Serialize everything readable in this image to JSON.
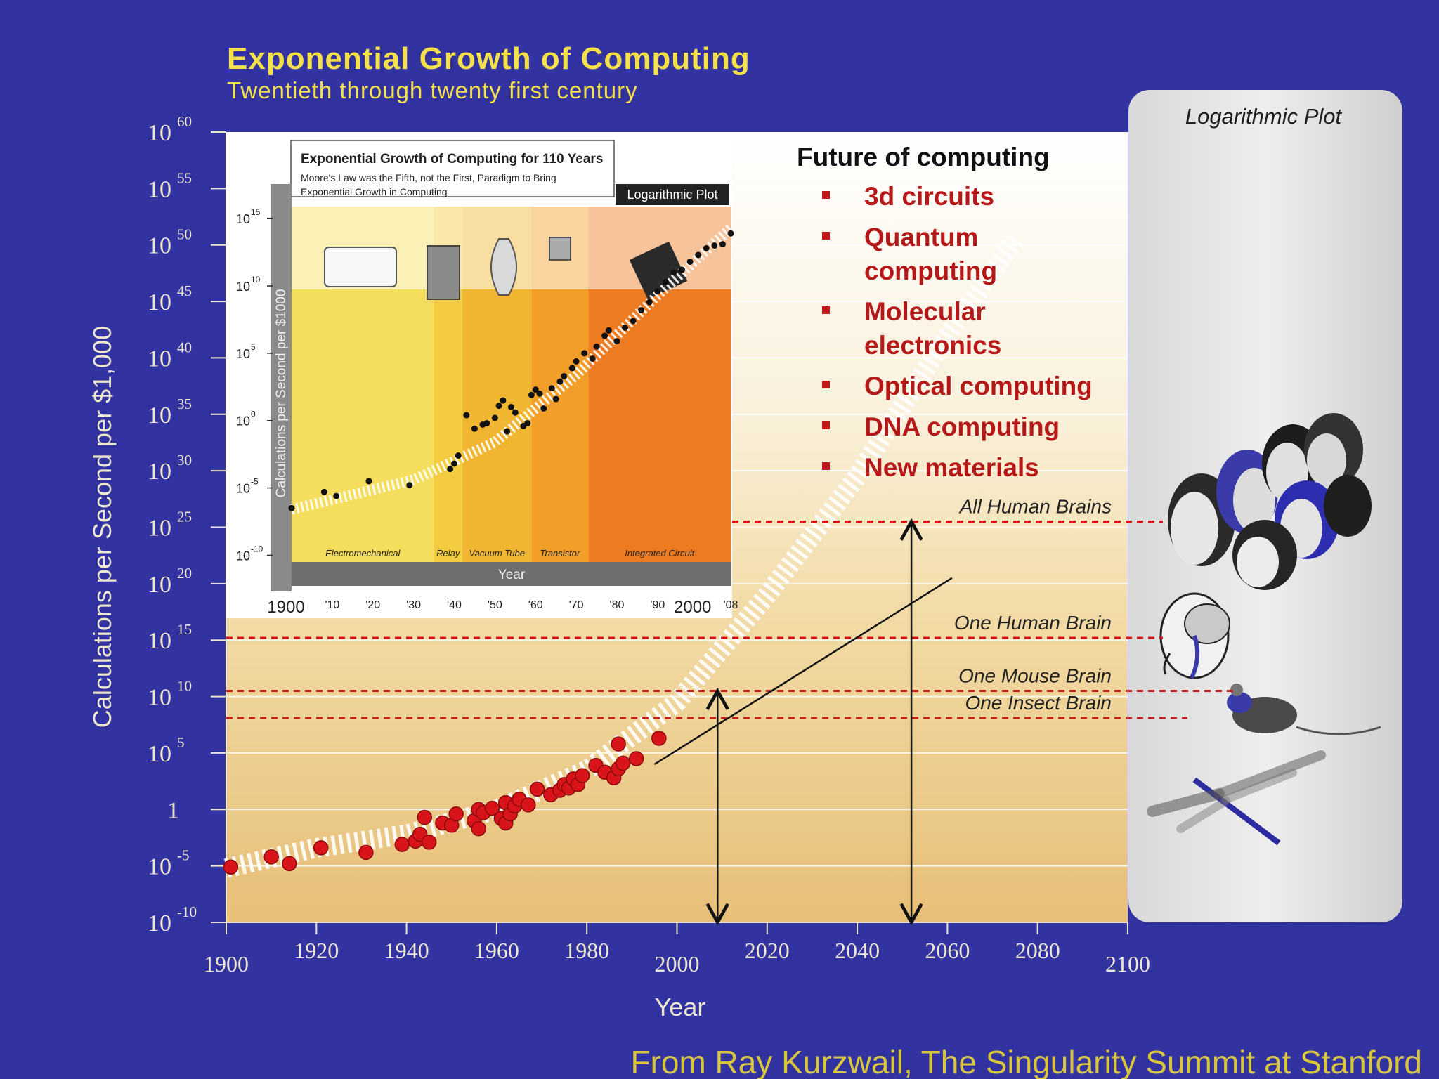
{
  "chart_data": {
    "type": "scatter",
    "title": "Exponential Growth of Computing",
    "subtitle": "Twentieth through twenty first century",
    "xlabel": "Year",
    "ylabel": "Calculations per Second per $1,000",
    "xlim": [
      1900,
      2100
    ],
    "ylim_log10": [
      -10,
      60
    ],
    "scale_y": "log",
    "x_ticks": [
      {
        "value": 1900,
        "label": "1900"
      },
      {
        "value": 1920,
        "label": "1920"
      },
      {
        "value": 1940,
        "label": "1940"
      },
      {
        "value": 1960,
        "label": "1960"
      },
      {
        "value": 1980,
        "label": "1980"
      },
      {
        "value": 2000,
        "label": "2000"
      },
      {
        "value": 2020,
        "label": "2020"
      },
      {
        "value": 2040,
        "label": "2040"
      },
      {
        "value": 2060,
        "label": "2060"
      },
      {
        "value": 2080,
        "label": "2080"
      },
      {
        "value": 2100,
        "label": "2100"
      }
    ],
    "y_ticks": [
      {
        "exp": 60,
        "base": "10",
        "sup": "60"
      },
      {
        "exp": 55,
        "base": "10",
        "sup": "55"
      },
      {
        "exp": 50,
        "base": "10",
        "sup": "50"
      },
      {
        "exp": 45,
        "base": "10",
        "sup": "45"
      },
      {
        "exp": 40,
        "base": "10",
        "sup": "40"
      },
      {
        "exp": 35,
        "base": "10",
        "sup": "35"
      },
      {
        "exp": 30,
        "base": "10",
        "sup": "30"
      },
      {
        "exp": 25,
        "base": "10",
        "sup": "25"
      },
      {
        "exp": 20,
        "base": "10",
        "sup": "20"
      },
      {
        "exp": 15,
        "base": "10",
        "sup": "15"
      },
      {
        "exp": 10,
        "base": "10",
        "sup": "10"
      },
      {
        "exp": 5,
        "base": "10",
        "sup": "5"
      },
      {
        "exp": 0,
        "base": "1",
        "sup": ""
      },
      {
        "exp": -5,
        "base": "10",
        "sup": "-5"
      },
      {
        "exp": -10,
        "base": "10",
        "sup": "-10"
      }
    ],
    "points_log10": [
      [
        1901,
        -5.1
      ],
      [
        1910,
        -4.2
      ],
      [
        1914,
        -4.8
      ],
      [
        1921,
        -3.4
      ],
      [
        1931,
        -3.8
      ],
      [
        1939,
        -3.1
      ],
      [
        1942,
        -2.8
      ],
      [
        1943,
        -2.2
      ],
      [
        1945,
        -2.9
      ],
      [
        1944,
        -0.7
      ],
      [
        1948,
        -1.2
      ],
      [
        1950,
        -1.4
      ],
      [
        1951,
        -0.4
      ],
      [
        1955,
        -1.0
      ],
      [
        1956,
        -1.7
      ],
      [
        1956,
        0.0
      ],
      [
        1957,
        -0.3
      ],
      [
        1959,
        0.1
      ],
      [
        1961,
        -0.8
      ],
      [
        1962,
        -1.2
      ],
      [
        1962,
        0.6
      ],
      [
        1963,
        -0.4
      ],
      [
        1964,
        0.3
      ],
      [
        1965,
        0.9
      ],
      [
        1967,
        0.4
      ],
      [
        1969,
        1.8
      ],
      [
        1972,
        1.3
      ],
      [
        1974,
        1.7
      ],
      [
        1975,
        2.2
      ],
      [
        1976,
        1.9
      ],
      [
        1977,
        2.7
      ],
      [
        1978,
        2.2
      ],
      [
        1979,
        3.0
      ],
      [
        1982,
        3.9
      ],
      [
        1984,
        3.3
      ],
      [
        1986,
        2.8
      ],
      [
        1987,
        3.6
      ],
      [
        1987,
        5.8
      ],
      [
        1988,
        4.1
      ],
      [
        1991,
        4.5
      ],
      [
        1996,
        6.3
      ]
    ],
    "trend_log10": [
      [
        1900,
        -5.2
      ],
      [
        1920,
        -3.4
      ],
      [
        1940,
        -2.2
      ],
      [
        1960,
        0.0
      ],
      [
        1980,
        3.5
      ],
      [
        2000,
        9.5
      ],
      [
        2020,
        19.0
      ],
      [
        2040,
        29.5
      ],
      [
        2060,
        42.0
      ],
      [
        2075,
        50.5
      ]
    ],
    "levels": [
      {
        "name": "All Human Brains",
        "exp": 25.5
      },
      {
        "name": "One Human Brain",
        "exp": 15.2
      },
      {
        "name": "One Mouse Brain",
        "exp": 10.5
      },
      {
        "name": "One Insect Brain",
        "exp": 8.1
      }
    ],
    "arrows": [
      {
        "year": 2009,
        "from_exp": -10,
        "to_exp": 10.5
      },
      {
        "year": 2052,
        "from_exp": -10,
        "to_exp": 25.5
      }
    ],
    "diagonal_line": [
      [
        1995,
        4.0
      ],
      [
        2061,
        20.5
      ]
    ]
  },
  "log_panel": {
    "label": "Logarithmic Plot"
  },
  "future": {
    "title": "Future of computing",
    "items": [
      [
        "3d circuits"
      ],
      [
        "Quantum",
        "computing"
      ],
      [
        "Molecular",
        "electronics"
      ],
      [
        "Optical computing"
      ],
      [
        "DNA computing"
      ],
      [
        "New materials"
      ]
    ]
  },
  "inset": {
    "title": "Exponential Growth of Computing for 110 Years",
    "subtitle_lines": [
      "Moore's Law was the Fifth, not the First, Paradigm to Bring",
      "Exponential Growth in Computing"
    ],
    "tag": "Logarithmic Plot",
    "ylabel": "Calculations per Second per $1000",
    "xlabel": "Year",
    "y_ticks": [
      {
        "exp": 15,
        "base": "10",
        "sup": "15"
      },
      {
        "exp": 10,
        "base": "10",
        "sup": "10"
      },
      {
        "exp": 5,
        "base": "10",
        "sup": "5"
      },
      {
        "exp": 0,
        "base": "10",
        "sup": "0"
      },
      {
        "exp": -5,
        "base": "10",
        "sup": "-5"
      },
      {
        "exp": -10,
        "base": "10",
        "sup": "-10"
      }
    ],
    "x_ticks": [
      {
        "year": 1900,
        "label": "1900",
        "big": true
      },
      {
        "year": 1910,
        "label": "'10"
      },
      {
        "year": 1920,
        "label": "'20"
      },
      {
        "year": 1930,
        "label": "'30"
      },
      {
        "year": 1940,
        "label": "'40"
      },
      {
        "year": 1950,
        "label": "'50"
      },
      {
        "year": 1960,
        "label": "'60"
      },
      {
        "year": 1970,
        "label": "'70"
      },
      {
        "year": 1980,
        "label": "'80"
      },
      {
        "year": 1990,
        "label": "'90"
      },
      {
        "year": 2000,
        "label": "2000",
        "big": true
      },
      {
        "year": 2008,
        "label": "'08"
      }
    ],
    "eras": [
      {
        "name": "Electromechanical",
        "from": 1900,
        "to": 1935,
        "color": "#f4dc54"
      },
      {
        "name": "Relay",
        "from": 1935,
        "to": 1942,
        "color": "#f2c935"
      },
      {
        "name": "Vacuum Tube",
        "from": 1942,
        "to": 1959,
        "color": "#f0b226"
      },
      {
        "name": "Transistor",
        "from": 1959,
        "to": 1973,
        "color": "#f09a1d"
      },
      {
        "name": "Integrated Circuit",
        "from": 1973,
        "to": 2008,
        "color": "#ec7415"
      }
    ],
    "points_log10": [
      [
        1900,
        -6.5
      ],
      [
        1908,
        -5.3
      ],
      [
        1911,
        -5.6
      ],
      [
        1919,
        -4.5
      ],
      [
        1929,
        -4.8
      ],
      [
        1939,
        -3.6
      ],
      [
        1940,
        -3.2
      ],
      [
        1941,
        -2.6
      ],
      [
        1943,
        0.4
      ],
      [
        1945,
        -0.6
      ],
      [
        1947,
        -0.3
      ],
      [
        1948,
        -0.2
      ],
      [
        1950,
        0.2
      ],
      [
        1951,
        1.1
      ],
      [
        1952,
        1.5
      ],
      [
        1953,
        -0.8
      ],
      [
        1954,
        1.0
      ],
      [
        1955,
        0.6
      ],
      [
        1957,
        -0.4
      ],
      [
        1958,
        -0.2
      ],
      [
        1959,
        1.9
      ],
      [
        1960,
        2.3
      ],
      [
        1961,
        2.0
      ],
      [
        1962,
        0.9
      ],
      [
        1964,
        2.4
      ],
      [
        1965,
        1.6
      ],
      [
        1966,
        2.9
      ],
      [
        1967,
        3.3
      ],
      [
        1969,
        3.9
      ],
      [
        1970,
        4.4
      ],
      [
        1972,
        5.0
      ],
      [
        1974,
        4.6
      ],
      [
        1975,
        5.5
      ],
      [
        1977,
        6.3
      ],
      [
        1978,
        6.7
      ],
      [
        1980,
        5.9
      ],
      [
        1982,
        6.9
      ],
      [
        1984,
        7.4
      ],
      [
        1986,
        8.2
      ],
      [
        1988,
        8.8
      ],
      [
        1990,
        9.6
      ],
      [
        1992,
        10.3
      ],
      [
        1994,
        11.0
      ],
      [
        1996,
        11.2
      ],
      [
        1998,
        11.8
      ],
      [
        2000,
        12.3
      ],
      [
        2002,
        12.8
      ],
      [
        2004,
        13.0
      ],
      [
        2006,
        13.1
      ],
      [
        2008,
        13.9
      ]
    ],
    "trend_log10": [
      [
        1900,
        -6.6
      ],
      [
        1930,
        -4.4
      ],
      [
        1950,
        -1.6
      ],
      [
        1970,
        3.4
      ],
      [
        1990,
        9.3
      ],
      [
        2008,
        14.3
      ]
    ]
  },
  "credit": "From Ray Kurzwail, The Singularity Summit at Stanford"
}
